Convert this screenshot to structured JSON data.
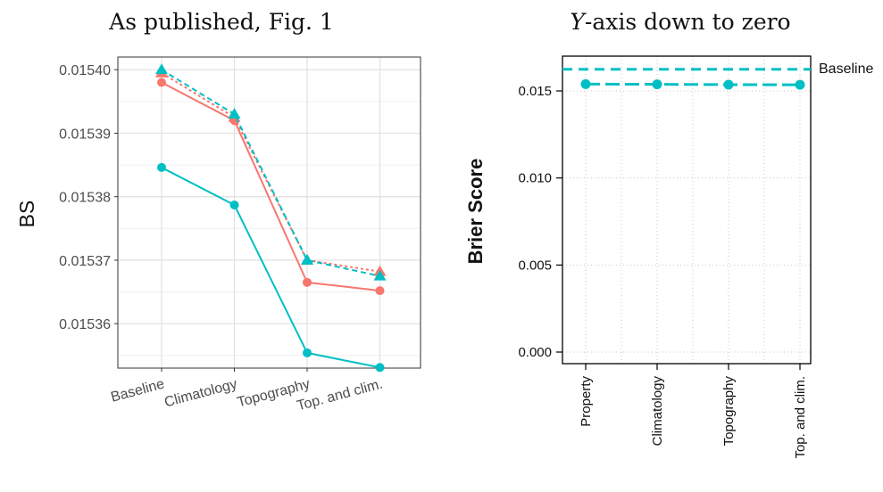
{
  "chart_data": [
    {
      "type": "line",
      "title": "As published, Fig. 1",
      "xlabel": "",
      "ylabel": "BS",
      "categories": [
        "Baseline",
        "Climatology",
        "Topography",
        "Top. and clim."
      ],
      "ylim": [
        0.015353,
        0.015402
      ],
      "yticks": [
        "0.01536",
        "0.01537",
        "0.01538",
        "0.01539",
        "0.01540"
      ],
      "ytick_values": [
        0.01536,
        0.01537,
        0.01538,
        0.01539,
        0.0154
      ],
      "grid": true,
      "series": [
        {
          "color": "#f8766d",
          "marker": "circle",
          "dash": "solid",
          "values": [
            0.015398,
            0.015392,
            0.0153665,
            0.0153652
          ]
        },
        {
          "color": "#f8766d",
          "marker": "triangle",
          "dash": "dotted",
          "values": [
            0.0153995,
            0.0153925,
            0.01537,
            0.0153682
          ]
        },
        {
          "color": "#00bfc4",
          "marker": "circle",
          "dash": "solid",
          "values": [
            0.0153846,
            0.0153787,
            0.0153554,
            0.0153531
          ]
        },
        {
          "color": "#00bfc4",
          "marker": "triangle",
          "dash": "dashed",
          "values": [
            0.0154,
            0.015393,
            0.01537,
            0.0153675
          ]
        }
      ]
    },
    {
      "type": "line",
      "title": "Y-axis down to zero",
      "title_italic_part": "Y",
      "title_rest": "-axis down to zero",
      "xlabel": "",
      "ylabel": "Brier Score",
      "categories": [
        "Property",
        "Climatology",
        "Topography",
        "Top. and clim."
      ],
      "ylim": [
        -0.0003,
        0.0169
      ],
      "yticks": [
        "0.000",
        "0.005",
        "0.010",
        "0.015"
      ],
      "ytick_values": [
        0.0,
        0.005,
        0.01,
        0.015
      ],
      "grid": true,
      "baseline": {
        "label": "Baseline",
        "value": 0.01624,
        "color": "#00bfc4",
        "dash": "dashed"
      },
      "series": [
        {
          "color": "#00bfc4",
          "marker": "circle",
          "dash": "longdash",
          "values": [
            0.01539,
            0.01538,
            0.01536,
            0.01535
          ]
        }
      ]
    }
  ]
}
